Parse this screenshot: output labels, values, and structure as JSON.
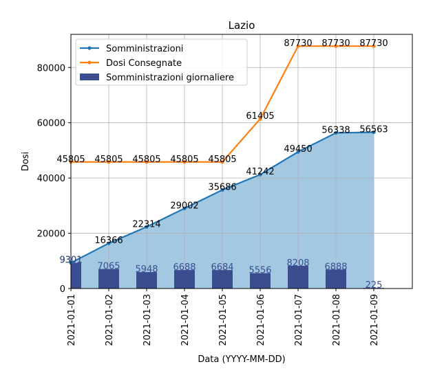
{
  "chart_data": {
    "type": "line",
    "title": "Lazio",
    "xlabel": "Data (YYYY-MM-DD)",
    "ylabel": "Dosi",
    "categories": [
      "2021-01-01",
      "2021-01-02",
      "2021-01-03",
      "2021-01-04",
      "2021-01-05",
      "2021-01-06",
      "2021-01-07",
      "2021-01-08",
      "2021-01-09"
    ],
    "ylim": [
      0,
      92000
    ],
    "yticks": [
      0,
      20000,
      40000,
      60000,
      80000
    ],
    "ytick_labels": [
      "0",
      "20000",
      "40000",
      "60000",
      "80000"
    ],
    "grid": true,
    "legend_position": "top-left",
    "series": [
      {
        "name": "Somministrazioni",
        "kind": "line",
        "color": "#1f77b4",
        "values": [
          9301,
          16366,
          22314,
          29002,
          35686,
          41242,
          49450,
          56338,
          56563
        ],
        "labels": [
          "9301",
          "16366",
          "22314",
          "29002",
          "35686",
          "41242",
          "49450",
          "56338",
          "56563"
        ]
      },
      {
        "name": "Dosi Consegnate",
        "kind": "line",
        "color": "#ff7f0e",
        "values": [
          45805,
          45805,
          45805,
          45805,
          45805,
          61405,
          87730,
          87730,
          87730
        ],
        "labels": [
          "45805",
          "45805",
          "45805",
          "45805",
          "45805",
          "61405",
          "87730",
          "87730",
          "87730"
        ]
      },
      {
        "name": "Somministrazioni giornaliere",
        "kind": "bar",
        "color": "#3b4d8f",
        "values": [
          9301,
          7065,
          5948,
          6688,
          6684,
          5556,
          8208,
          6888,
          225
        ],
        "labels": [
          "9301",
          "7065",
          "5948",
          "6688",
          "6684",
          "5556",
          "8208",
          "6888",
          "225"
        ]
      }
    ],
    "area_fill_color": "#a3c8e2"
  }
}
